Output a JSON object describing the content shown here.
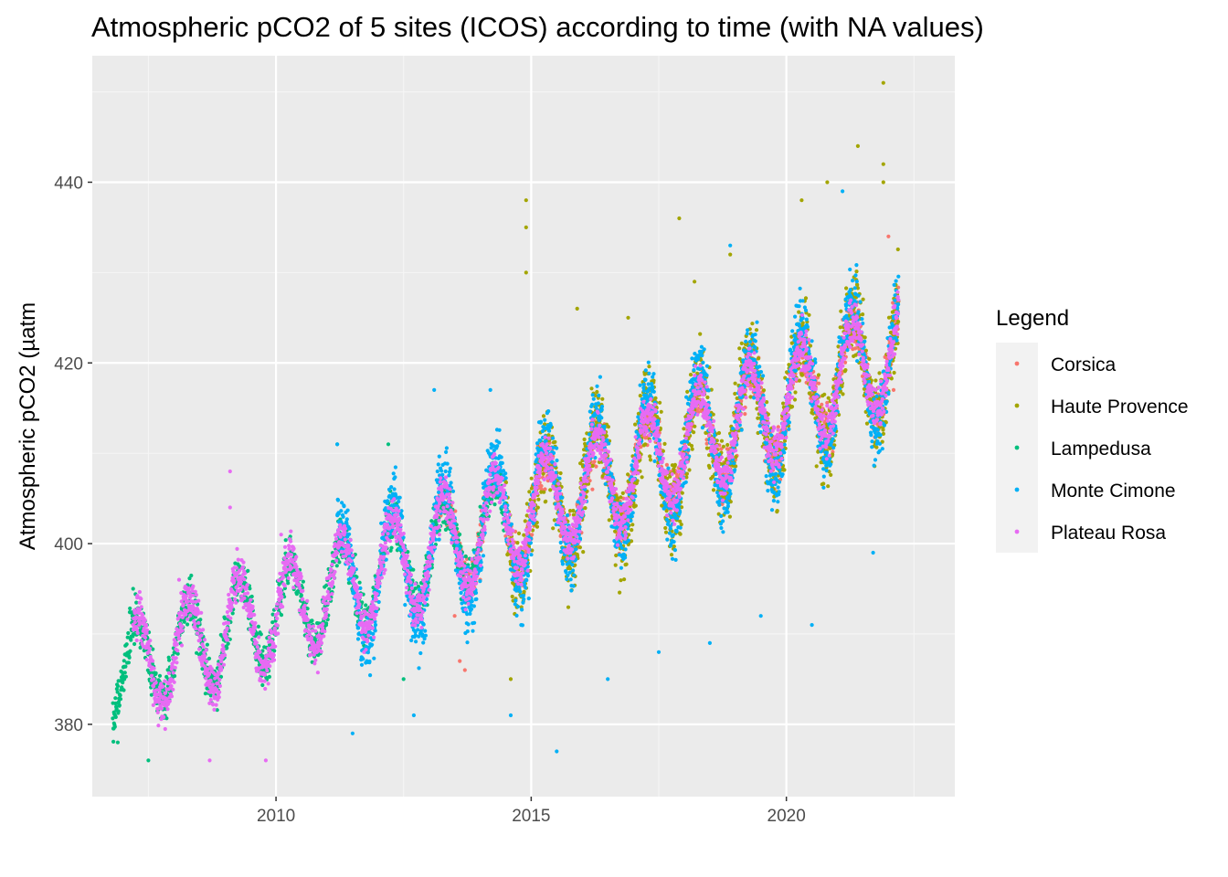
{
  "chart_data": {
    "type": "scatter",
    "title": "Atmospheric pCO2 of 5 sites (ICOS) according to time (with NA values)",
    "xlabel": "",
    "ylabel": "Atmospheric pCO2 (µatm",
    "xlim": [
      2006.4,
      2023.3
    ],
    "ylim": [
      372,
      454
    ],
    "x_ticks": [
      2010,
      2015,
      2020
    ],
    "y_ticks": [
      380,
      400,
      420,
      440
    ],
    "grid": true,
    "legend": {
      "title": "Legend",
      "placement": "right"
    },
    "series": [
      {
        "name": "Corsica",
        "color": "#F8766D",
        "segments": [
          {
            "start": 2013.2,
            "end": 2014.1
          },
          {
            "start": 2014.5,
            "end": 2022.2
          }
        ],
        "points": [
          {
            "x": 2013.3,
            "y": 404
          },
          {
            "x": 2013.5,
            "y": 392
          },
          {
            "x": 2013.6,
            "y": 387
          },
          {
            "x": 2013.7,
            "y": 386
          },
          {
            "x": 2014.0,
            "y": 396
          },
          {
            "x": 2015.2,
            "y": 406
          },
          {
            "x": 2016.2,
            "y": 406
          },
          {
            "x": 2017.2,
            "y": 412
          },
          {
            "x": 2018.2,
            "y": 415
          },
          {
            "x": 2019.2,
            "y": 417
          },
          {
            "x": 2020.2,
            "y": 418
          },
          {
            "x": 2021.2,
            "y": 425
          },
          {
            "x": 2022.0,
            "y": 434
          },
          {
            "x": 2022.1,
            "y": 417
          }
        ]
      },
      {
        "name": "Haute Provence",
        "color": "#A3A500",
        "segments": [
          {
            "start": 2014.5,
            "end": 2022.2
          }
        ],
        "points": [
          {
            "x": 2014.9,
            "y": 438
          },
          {
            "x": 2014.9,
            "y": 435
          },
          {
            "x": 2014.9,
            "y": 430
          },
          {
            "x": 2014.6,
            "y": 385
          },
          {
            "x": 2015.9,
            "y": 426
          },
          {
            "x": 2016.9,
            "y": 425
          },
          {
            "x": 2017.9,
            "y": 436
          },
          {
            "x": 2018.2,
            "y": 429
          },
          {
            "x": 2018.9,
            "y": 432
          },
          {
            "x": 2020.3,
            "y": 438
          },
          {
            "x": 2020.8,
            "y": 440
          },
          {
            "x": 2021.4,
            "y": 444
          },
          {
            "x": 2021.9,
            "y": 451
          },
          {
            "x": 2021.9,
            "y": 442
          },
          {
            "x": 2021.9,
            "y": 440
          }
        ]
      },
      {
        "name": "Lampedusa",
        "color": "#00BF7D",
        "segments": [
          {
            "start": 2006.8,
            "end": 2014.5
          }
        ],
        "points": [
          {
            "x": 2006.9,
            "y": 378
          },
          {
            "x": 2007.2,
            "y": 395
          },
          {
            "x": 2007.5,
            "y": 376
          },
          {
            "x": 2008.2,
            "y": 394
          },
          {
            "x": 2009.2,
            "y": 396
          },
          {
            "x": 2010.2,
            "y": 397
          },
          {
            "x": 2011.2,
            "y": 411
          },
          {
            "x": 2012.2,
            "y": 411
          },
          {
            "x": 2012.5,
            "y": 385
          }
        ]
      },
      {
        "name": "Monte Cimone",
        "color": "#00B0F6",
        "segments": [
          {
            "start": 2011.2,
            "end": 2022.2
          }
        ],
        "points": [
          {
            "x": 2011.2,
            "y": 411
          },
          {
            "x": 2011.5,
            "y": 379
          },
          {
            "x": 2012.7,
            "y": 381
          },
          {
            "x": 2013.1,
            "y": 417
          },
          {
            "x": 2014.2,
            "y": 417
          },
          {
            "x": 2014.6,
            "y": 381
          },
          {
            "x": 2015.5,
            "y": 377
          },
          {
            "x": 2016.5,
            "y": 385
          },
          {
            "x": 2017.5,
            "y": 388
          },
          {
            "x": 2018.5,
            "y": 389
          },
          {
            "x": 2018.9,
            "y": 433
          },
          {
            "x": 2019.5,
            "y": 392
          },
          {
            "x": 2020.5,
            "y": 391
          },
          {
            "x": 2021.1,
            "y": 439
          },
          {
            "x": 2021.7,
            "y": 399
          }
        ]
      },
      {
        "name": "Plateau Rosa",
        "color": "#E76BF3",
        "segments": [
          {
            "start": 2007.2,
            "end": 2022.2
          }
        ],
        "points": [
          {
            "x": 2008.1,
            "y": 396
          },
          {
            "x": 2008.7,
            "y": 376
          },
          {
            "x": 2009.1,
            "y": 408
          },
          {
            "x": 2009.1,
            "y": 404
          },
          {
            "x": 2009.8,
            "y": 376
          },
          {
            "x": 2010.1,
            "y": 401
          },
          {
            "x": 2013.2,
            "y": 401
          }
        ]
      }
    ]
  }
}
